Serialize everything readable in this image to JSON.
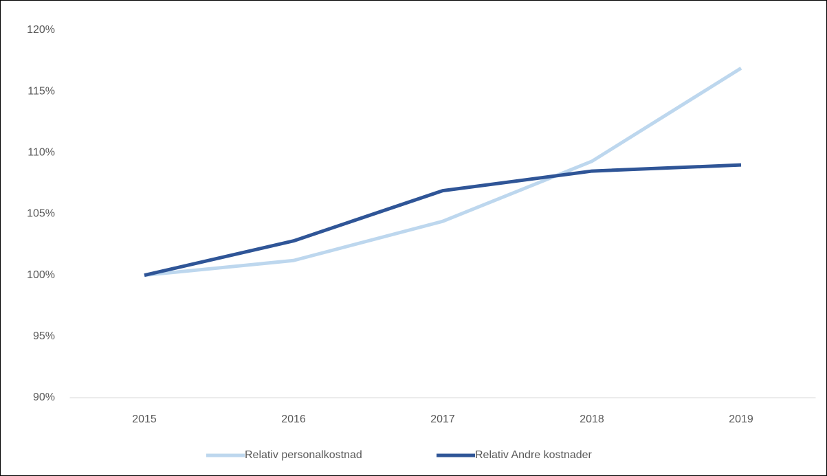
{
  "chart_data": {
    "type": "line",
    "categories": [
      "2015",
      "2016",
      "2017",
      "2018",
      "2019"
    ],
    "series": [
      {
        "name": "Relativ personalkostnad",
        "color": "#bdd7ee",
        "values": [
          100,
          101.2,
          104.4,
          109.3,
          116.9
        ]
      },
      {
        "name": "Relativ Andre kostnader",
        "color": "#2f5597",
        "values": [
          100,
          102.8,
          106.9,
          108.5,
          109.0
        ]
      }
    ],
    "ylim": [
      90,
      120
    ],
    "yticks": [
      {
        "value": 90,
        "label": "90%"
      },
      {
        "value": 95,
        "label": "95%"
      },
      {
        "value": 100,
        "label": "100%"
      },
      {
        "value": 105,
        "label": "105%"
      },
      {
        "value": 110,
        "label": "110%"
      },
      {
        "value": 115,
        "label": "115%"
      },
      {
        "value": 120,
        "label": "120%"
      }
    ],
    "grid": false,
    "legend": "bottom"
  }
}
